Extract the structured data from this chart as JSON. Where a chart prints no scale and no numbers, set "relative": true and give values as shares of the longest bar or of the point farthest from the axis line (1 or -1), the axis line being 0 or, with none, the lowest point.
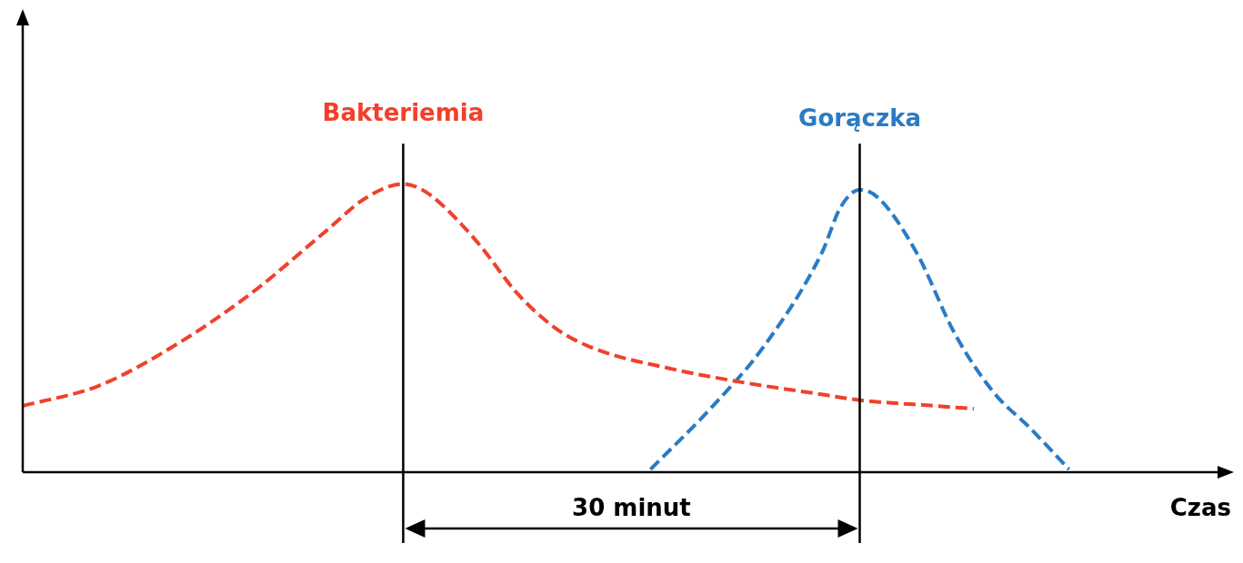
{
  "chart_data": {
    "type": "line",
    "relative": true,
    "xlabel": "Czas",
    "categories": [
      null,
      null,
      null,
      null,
      null,
      null,
      null,
      null,
      null,
      null,
      null,
      null,
      null,
      null,
      null,
      null,
      null,
      null,
      null,
      null,
      null,
      null,
      null,
      null,
      null,
      null,
      null,
      null,
      null,
      null,
      null,
      null,
      null,
      null,
      null,
      null,
      null,
      null,
      null,
      null,
      null,
      null,
      null,
      null,
      null,
      null,
      null,
      null,
      null,
      null,
      null,
      null,
      null,
      null,
      null,
      null,
      null,
      null,
      null,
      null,
      null,
      null,
      null,
      null
    ],
    "series": [
      {
        "name": "Bakteriemia",
        "color": "#f0412a",
        "line_style": "dashed",
        "values": [
          0.23,
          null,
          null,
          null,
          0.3,
          null,
          null,
          null,
          0.44,
          null,
          null,
          null,
          0.62,
          null,
          null,
          null,
          0.84,
          null,
          0.95,
          null,
          1.0,
          0.98,
          0.93,
          null,
          0.79,
          null,
          0.62,
          null,
          0.5,
          null,
          0.43,
          null,
          null,
          null,
          0.36,
          null,
          null,
          null,
          0.31,
          null,
          null,
          null,
          0.27,
          null,
          0.25,
          null,
          null,
          null,
          0.23,
          null,
          0.22,
          null,
          null,
          null,
          null,
          null,
          null,
          null,
          null,
          null,
          null,
          null,
          null,
          null
        ]
      },
      {
        "name": "Gorączka",
        "color": "#2a7bc4",
        "line_style": "dashed",
        "values": [
          null,
          null,
          null,
          null,
          null,
          null,
          null,
          null,
          null,
          null,
          null,
          null,
          null,
          null,
          null,
          null,
          null,
          null,
          null,
          null,
          null,
          null,
          null,
          null,
          null,
          null,
          null,
          null,
          null,
          null,
          null,
          null,
          null,
          0.01,
          null,
          null,
          0.21,
          null,
          null,
          0.44,
          null,
          null,
          0.76,
          0.92,
          0.98,
          0.95,
          null,
          0.76,
          null,
          0.48,
          null,
          0.28,
          null,
          0.15,
          null,
          0.01,
          null,
          null,
          null,
          null,
          null,
          null,
          null,
          null
        ]
      }
    ],
    "annotations": [
      "30 minut"
    ],
    "grid": false,
    "legend": false,
    "marker": "none"
  }
}
